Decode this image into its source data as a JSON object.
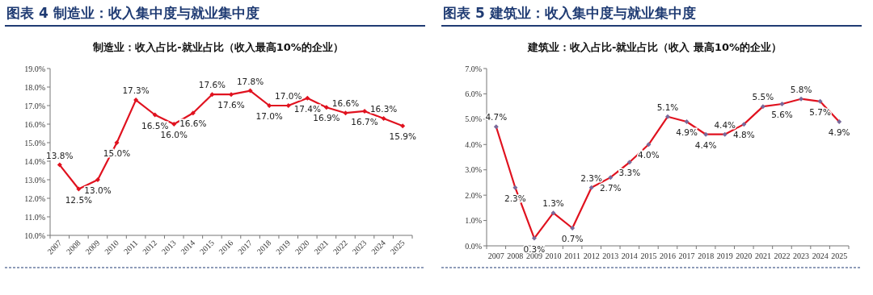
{
  "chart_data": [
    {
      "type": "line",
      "title": "图表 4 制造业：收入集中度与就业集中度",
      "subtitle": "制造业：收入占比-就业占比（收入最高10%的企业）",
      "categories": [
        "2007",
        "2008",
        "2009",
        "2010",
        "2011",
        "2012",
        "2013",
        "2014",
        "2015",
        "2016",
        "2017",
        "2018",
        "2019",
        "2020",
        "2021",
        "2022",
        "2023",
        "2024",
        "2025"
      ],
      "series": [
        {
          "color": "#e0121f",
          "values": [
            13.8,
            12.5,
            13.0,
            15.0,
            17.3,
            16.5,
            16.0,
            16.6,
            17.6,
            17.6,
            17.8,
            17.0,
            17.0,
            17.4,
            16.9,
            16.6,
            16.7,
            16.3,
            15.9
          ],
          "value_labels": [
            "13.8%",
            "12.5%",
            "13.0%",
            "15.0%",
            "17.3%",
            "16.5%",
            "16.0%",
            "16.6%",
            "17.6%",
            "17.6%",
            "17.8%",
            "17.0%",
            "17.0%",
            "17.4%",
            "16.9%",
            "16.6%",
            "16.7%",
            "16.3%",
            "15.9%"
          ]
        }
      ],
      "ylim": [
        10,
        19
      ],
      "yticks": [
        {
          "value": 10,
          "label": "10.0%"
        },
        {
          "value": 11,
          "label": "11.0%"
        },
        {
          "value": 12,
          "label": "12.0%"
        },
        {
          "value": 13,
          "label": "13.0%"
        },
        {
          "value": 14,
          "label": "14.0%"
        },
        {
          "value": 15,
          "label": "15.0%"
        },
        {
          "value": 16,
          "label": "16.0%"
        },
        {
          "value": 17,
          "label": "17.0%"
        },
        {
          "value": 18,
          "label": "18.0%"
        },
        {
          "value": 19,
          "label": "19.0%"
        }
      ],
      "marker": "diamond",
      "grid": false
    },
    {
      "type": "line",
      "title": "图表 5 建筑业：收入集中度与就业集中度",
      "subtitle": "建筑业：收入占比-就业占比（收入 最高10%的企业）",
      "categories": [
        "2007",
        "2008",
        "2009",
        "2010",
        "2011",
        "2012",
        "2013",
        "2014",
        "2015",
        "2016",
        "2017",
        "2018",
        "2019",
        "2020",
        "2021",
        "2022",
        "2023",
        "2024",
        "2025"
      ],
      "series": [
        {
          "color": "#e0121f",
          "values": [
            4.7,
            2.3,
            0.3,
            1.3,
            0.7,
            2.3,
            2.7,
            3.3,
            4.0,
            5.1,
            4.9,
            4.4,
            4.4,
            4.8,
            5.5,
            5.6,
            5.8,
            5.7,
            4.9
          ],
          "value_labels": [
            "4.7%",
            "2.3%",
            "0.3%",
            "1.3%",
            "0.7%",
            "2.3%",
            "2.7%",
            "3.3%",
            "4.0%",
            "5.1%",
            "4.9%",
            "4.4%",
            "4.4%",
            "4.8%",
            "5.5%",
            "5.6%",
            "5.8%",
            "5.7%",
            "4.9%"
          ]
        }
      ],
      "ylim": [
        0,
        7
      ],
      "yticks": [
        {
          "value": 0,
          "label": "0.0%"
        },
        {
          "value": 1,
          "label": "1.0%"
        },
        {
          "value": 2,
          "label": "2.0%"
        },
        {
          "value": 3,
          "label": "3.0%"
        },
        {
          "value": 4,
          "label": "4.0%"
        },
        {
          "value": 5,
          "label": "5.0%"
        },
        {
          "value": 6,
          "label": "6.0%"
        },
        {
          "value": 7,
          "label": "7.0%"
        }
      ],
      "marker": "diamond",
      "grid": false
    }
  ]
}
